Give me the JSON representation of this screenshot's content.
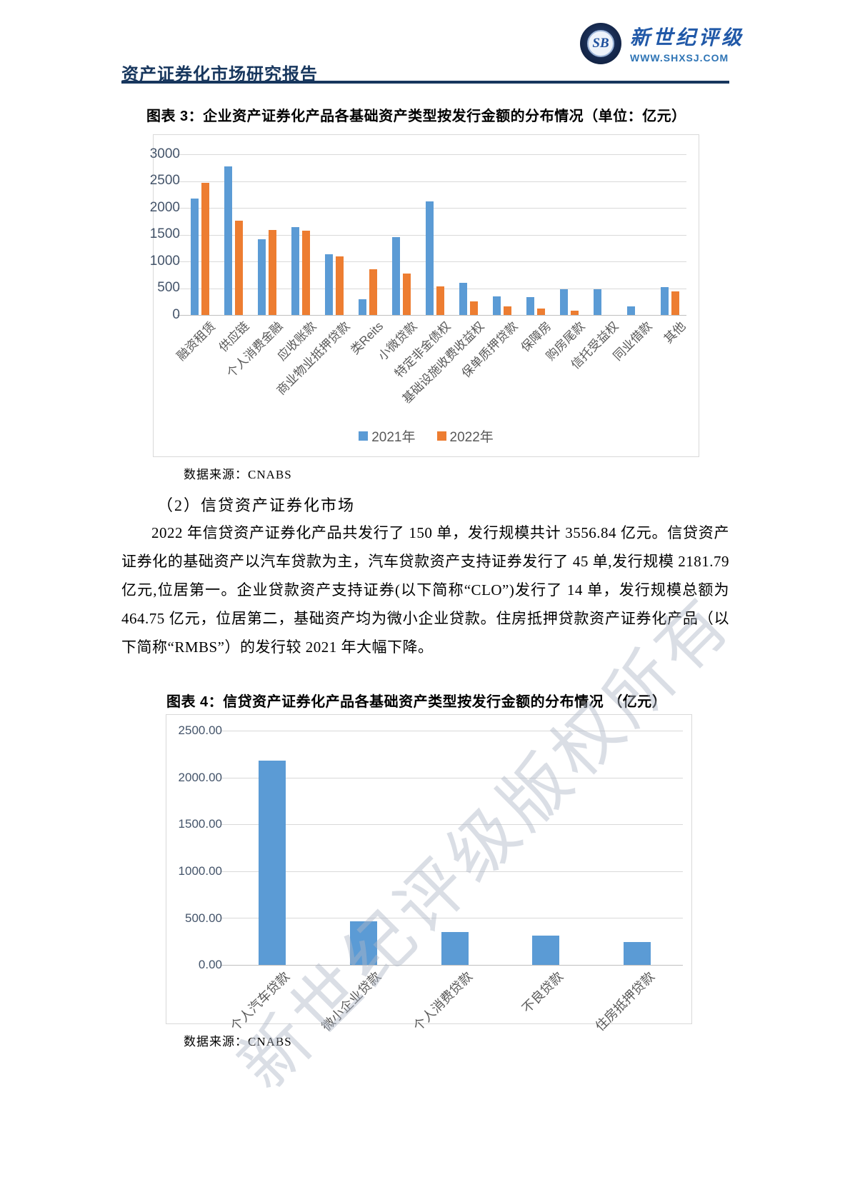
{
  "header": {
    "title": "资产证券化市场研究报告",
    "brand": "新世纪评级",
    "website": "WWW.SHXSJ.COM",
    "logo_monogram": "SB"
  },
  "figure3": {
    "title": "图表 3：企业资产证券化产品各基础资产类型按发行金额的分布情况（单位：亿元）",
    "source_label": "数据来源：CNABS"
  },
  "section": {
    "heading": "（2）信贷资产证券化市场",
    "paragraph": "2022 年信贷资产证券化产品共发行了 150 单，发行规模共计 3556.84 亿元。信贷资产证券化的基础资产以汽车贷款为主，汽车贷款资产支持证券发行了 45 单,发行规模 2181.79 亿元,位居第一。企业贷款资产支持证券(以下简称“CLO”)发行了 14 单，发行规模总额为 464.75 亿元，位居第二，基础资产均为微小企业贷款。住房抵押贷款资产证券化产品（以下简称“RMBS”）的发行较 2021 年大幅下降。"
  },
  "figure4": {
    "title": "图表 4：信贷资产证券化产品各基础资产类型按发行金额的分布情况 （亿元）",
    "source_label": "数据来源：CNABS"
  },
  "watermark": {
    "text": "新世纪评级版权所有"
  },
  "chart_data": [
    {
      "type": "bar",
      "title": "图表 3：企业资产证券化产品各基础资产类型按发行金额的分布情况（单位：亿元）",
      "categories": [
        "融资租赁",
        "供应链",
        "个人消费金融",
        "应收账款",
        "商业物业抵押贷款",
        "类Reits",
        "小微贷款",
        "特定非金债权",
        "基础设施收费收益权",
        "保单质押贷款",
        "保障房",
        "购房尾款",
        "信托受益权",
        "同业借款",
        "其他"
      ],
      "series": [
        {
          "name": "2021年",
          "color": "#5B9BD5",
          "values": [
            2180,
            2780,
            1420,
            1640,
            1130,
            295,
            1460,
            2120,
            600,
            350,
            340,
            480,
            475,
            165,
            525
          ]
        },
        {
          "name": "2022年",
          "color": "#ED7D31",
          "values": [
            2470,
            1760,
            1590,
            1580,
            1100,
            855,
            770,
            540,
            250,
            160,
            120,
            85,
            0,
            0,
            435
          ]
        }
      ],
      "xlabel": "",
      "ylabel": "",
      "ylim": [
        0,
        3000
      ],
      "ytick_step": 500,
      "ytick_labels": [
        "0",
        "500",
        "1000",
        "1500",
        "2000",
        "2500",
        "3000"
      ],
      "grid": true,
      "legend_position": "bottom"
    },
    {
      "type": "bar",
      "title": "图表 4：信贷资产证券化产品各基础资产类型按发行金额的分布情况 （亿元）",
      "categories": [
        "个人汽车贷款",
        "微小企业贷款",
        "个人消费贷款",
        "不良贷款",
        "住房抵押贷款"
      ],
      "series": [
        {
          "name": "发行金额",
          "color": "#5B9BD5",
          "values": [
            2181.79,
            464.75,
            350,
            310,
            245
          ]
        }
      ],
      "xlabel": "",
      "ylabel": "",
      "ylim": [
        0,
        2500
      ],
      "ytick_step": 500,
      "ytick_labels": [
        "0.00",
        "500.00",
        "1000.00",
        "1500.00",
        "2000.00",
        "2500.00"
      ],
      "grid": true,
      "legend_position": "none"
    }
  ]
}
